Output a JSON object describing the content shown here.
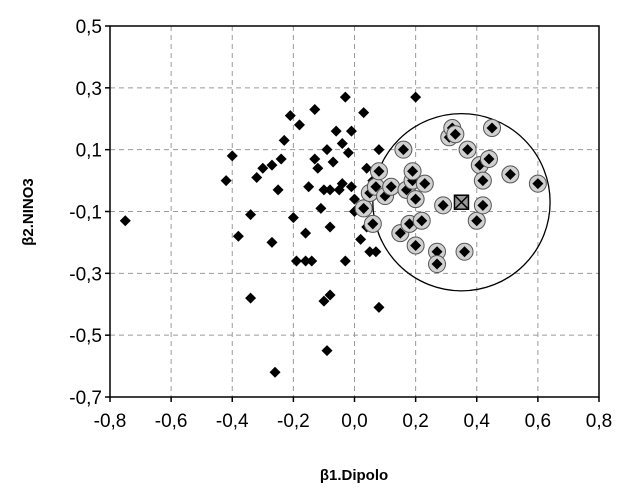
{
  "chart_data": {
    "type": "scatter",
    "title": "",
    "xlabel": "β1.Dipolo",
    "ylabel": "β2.NINO3",
    "xlim": [
      -0.8,
      0.8
    ],
    "ylim": [
      -0.7,
      0.5
    ],
    "xticks": [
      -0.8,
      -0.6,
      -0.4,
      -0.2,
      0.0,
      0.2,
      0.4,
      0.6,
      0.8
    ],
    "yticks": [
      0.5,
      0.3,
      0.1,
      -0.1,
      -0.3,
      -0.5,
      -0.7
    ],
    "xtick_labels": [
      "-0,8",
      "-0,6",
      "-0,4",
      "-0,2",
      "0,0",
      "0,2",
      "0,4",
      "0,6",
      "0,8"
    ],
    "ytick_labels": [
      "0,5",
      "0,3",
      "0,1",
      "-0,1",
      "-0,3",
      "-0,5",
      "-0,7"
    ],
    "grid": true,
    "series": [
      {
        "marker": "filled-diamond",
        "points": [
          [
            -0.75,
            -0.13
          ],
          [
            -0.42,
            0.0
          ],
          [
            -0.4,
            0.08
          ],
          [
            -0.38,
            -0.18
          ],
          [
            -0.34,
            -0.11
          ],
          [
            -0.34,
            -0.38
          ],
          [
            -0.32,
            0.01
          ],
          [
            -0.3,
            0.04
          ],
          [
            -0.27,
            -0.2
          ],
          [
            -0.27,
            0.05
          ],
          [
            -0.26,
            -0.62
          ],
          [
            -0.25,
            -0.03
          ],
          [
            -0.24,
            0.07
          ],
          [
            -0.23,
            0.13
          ],
          [
            -0.21,
            0.21
          ],
          [
            -0.2,
            -0.12
          ],
          [
            -0.19,
            -0.26
          ],
          [
            -0.18,
            0.18
          ],
          [
            -0.16,
            -0.26
          ],
          [
            -0.16,
            -0.17
          ],
          [
            -0.15,
            -0.02
          ],
          [
            -0.14,
            -0.26
          ],
          [
            -0.13,
            0.23
          ],
          [
            -0.13,
            0.07
          ],
          [
            -0.12,
            0.04
          ],
          [
            -0.11,
            -0.09
          ],
          [
            -0.1,
            -0.39
          ],
          [
            -0.1,
            -0.03
          ],
          [
            -0.09,
            -0.55
          ],
          [
            -0.09,
            0.1
          ],
          [
            -0.08,
            -0.15
          ],
          [
            -0.08,
            -0.37
          ],
          [
            -0.08,
            -0.03
          ],
          [
            -0.07,
            0.06
          ],
          [
            -0.06,
            0.16
          ],
          [
            -0.05,
            -0.03
          ],
          [
            -0.04,
            0.12
          ],
          [
            -0.04,
            -0.01
          ],
          [
            -0.03,
            -0.26
          ],
          [
            -0.03,
            0.27
          ],
          [
            -0.02,
            0.09
          ],
          [
            -0.01,
            -0.02
          ],
          [
            -0.01,
            0.16
          ],
          [
            0.0,
            -0.06
          ],
          [
            0.0,
            -0.1
          ],
          [
            0.02,
            -0.19
          ],
          [
            0.03,
            0.22
          ],
          [
            0.04,
            -0.15
          ],
          [
            0.04,
            0.04
          ],
          [
            0.05,
            -0.23
          ],
          [
            0.06,
            0.0
          ],
          [
            0.07,
            -0.23
          ],
          [
            0.08,
            -0.41
          ],
          [
            0.08,
            0.1
          ],
          [
            0.2,
            0.27
          ]
        ]
      },
      {
        "marker": "circled-diamond",
        "points": [
          [
            0.03,
            -0.09
          ],
          [
            0.05,
            -0.04
          ],
          [
            0.06,
            -0.14
          ],
          [
            0.07,
            -0.02
          ],
          [
            0.08,
            0.03
          ],
          [
            0.1,
            -0.05
          ],
          [
            0.12,
            -0.02
          ],
          [
            0.15,
            -0.17
          ],
          [
            0.16,
            0.1
          ],
          [
            0.17,
            -0.03
          ],
          [
            0.18,
            -0.14
          ],
          [
            0.19,
            0.0
          ],
          [
            0.19,
            0.03
          ],
          [
            0.2,
            -0.06
          ],
          [
            0.2,
            -0.21
          ],
          [
            0.22,
            -0.13
          ],
          [
            0.23,
            -0.01
          ],
          [
            0.27,
            -0.23
          ],
          [
            0.27,
            -0.27
          ],
          [
            0.29,
            -0.08
          ],
          [
            0.31,
            0.14
          ],
          [
            0.32,
            0.17
          ],
          [
            0.33,
            0.15
          ],
          [
            0.36,
            -0.23
          ],
          [
            0.37,
            0.1
          ],
          [
            0.4,
            -0.13
          ],
          [
            0.41,
            0.05
          ],
          [
            0.42,
            -0.08
          ],
          [
            0.42,
            0.0
          ],
          [
            0.44,
            0.07
          ],
          [
            0.45,
            0.17
          ],
          [
            0.51,
            0.02
          ],
          [
            0.6,
            -0.01
          ]
        ]
      }
    ],
    "annotations": [
      {
        "type": "circle",
        "center": [
          0.35,
          -0.07
        ],
        "radius_x": 0.29
      },
      {
        "type": "square-marker",
        "center": [
          0.35,
          -0.07
        ]
      }
    ]
  }
}
